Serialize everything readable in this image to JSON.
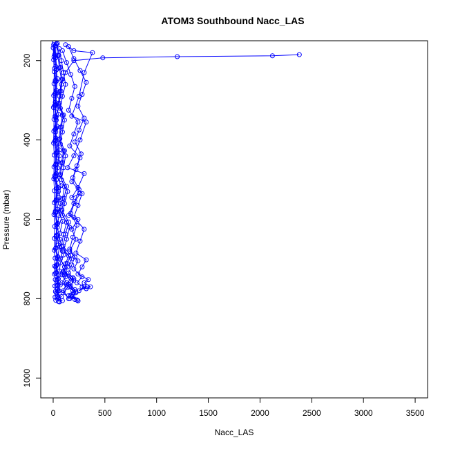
{
  "chart_data": {
    "type": "line",
    "title": "ATOM3 Southbound Nacc_LAS",
    "xlabel": "Nacc_LAS",
    "ylabel": "Pressure (mbar)",
    "xlim": [
      -120,
      3620
    ],
    "ylim": [
      1050,
      150
    ],
    "y_reversed": true,
    "x_ticks": [
      0,
      500,
      1000,
      1500,
      2000,
      2500,
      3000,
      3500
    ],
    "y_ticks": [
      200,
      400,
      600,
      800,
      1000
    ],
    "grid": false,
    "marker": "open-circle",
    "color": "#0000ff",
    "series": [
      {
        "x": [
          5,
          8,
          12,
          20,
          35,
          25,
          18,
          30,
          22,
          40,
          28,
          15,
          50,
          35,
          20,
          45,
          30,
          60,
          40,
          25,
          55,
          35,
          70,
          45,
          30,
          80,
          50,
          90
        ],
        "y": [
          160,
          190,
          220,
          250,
          280,
          310,
          340,
          370,
          400,
          430,
          460,
          490,
          520,
          550,
          580,
          610,
          640,
          670,
          700,
          720,
          740,
          755,
          765,
          775,
          785,
          795,
          800,
          805
        ]
      },
      {
        "x": [
          10,
          15,
          25,
          40,
          30,
          20,
          50,
          35,
          25,
          60,
          45,
          30,
          75,
          55,
          40,
          90,
          65,
          50,
          100,
          70,
          60,
          120,
          85,
          140,
          95,
          160
        ],
        "y": [
          155,
          185,
          215,
          245,
          275,
          305,
          335,
          365,
          395,
          425,
          455,
          485,
          515,
          545,
          575,
          605,
          635,
          665,
          690,
          710,
          730,
          745,
          760,
          772,
          785,
          800
        ]
      },
      {
        "x": [
          2380,
          2120,
          1200,
          480,
          200,
          120,
          80,
          60,
          40,
          30,
          25,
          40,
          60,
          45,
          30,
          50,
          70,
          55,
          40,
          65,
          90,
          70,
          110,
          85,
          130,
          100,
          150
        ],
        "y": [
          185,
          188,
          190,
          193,
          200,
          230,
          260,
          290,
          320,
          350,
          380,
          410,
          440,
          470,
          500,
          530,
          560,
          590,
          620,
          650,
          680,
          700,
          720,
          740,
          760,
          780,
          800
        ]
      },
      {
        "x": [
          120,
          200,
          380,
          300,
          250,
          180,
          320,
          260,
          200,
          140,
          300,
          240,
          180,
          260,
          200,
          150,
          240,
          180,
          220,
          160,
          240,
          200,
          280,
          230,
          300,
          250,
          330
        ],
        "y": [
          160,
          175,
          180,
          230,
          290,
          340,
          355,
          400,
          440,
          470,
          485,
          520,
          545,
          535,
          560,
          590,
          600,
          625,
          650,
          680,
          705,
          725,
          745,
          760,
          770,
          780,
          770
        ]
      },
      {
        "x": [
          60,
          80,
          100,
          120,
          90,
          70,
          110,
          90,
          70,
          120,
          100,
          80,
          140,
          110,
          90,
          160,
          130,
          100,
          180,
          140,
          110,
          200,
          160,
          220,
          180,
          240
        ],
        "y": [
          170,
          200,
          230,
          260,
          290,
          320,
          350,
          380,
          410,
          440,
          470,
          500,
          530,
          560,
          590,
          620,
          650,
          680,
          700,
          720,
          740,
          755,
          770,
          785,
          795,
          805
        ]
      },
      {
        "x": [
          30,
          45,
          60,
          80,
          65,
          50,
          90,
          70,
          55,
          100,
          80,
          60,
          110,
          90,
          70,
          130,
          100,
          80,
          150,
          120,
          95,
          170,
          130,
          190,
          150,
          210
        ],
        "y": [
          158,
          188,
          218,
          248,
          278,
          308,
          338,
          368,
          398,
          428,
          458,
          488,
          518,
          548,
          578,
          608,
          638,
          668,
          692,
          712,
          732,
          748,
          765,
          780,
          792,
          802
        ]
      },
      {
        "x": [
          150,
          200,
          260,
          320,
          280,
          240,
          300,
          250,
          210,
          270,
          230,
          190,
          250,
          210,
          170,
          230,
          190,
          160,
          210,
          180,
          150,
          200,
          170,
          220,
          190,
          240
        ],
        "y": [
          165,
          195,
          225,
          255,
          285,
          315,
          345,
          375,
          405,
          435,
          465,
          495,
          525,
          555,
          585,
          615,
          645,
          675,
          695,
          715,
          735,
          750,
          768,
          782,
          794,
          806
        ]
      },
      {
        "x": [
          20,
          25,
          35,
          30,
          22,
          18,
          28,
          24,
          20,
          32,
          26,
          22,
          36,
          30,
          25,
          40,
          34,
          28,
          45,
          38,
          32,
          50,
          42,
          55,
          46,
          60
        ],
        "y": [
          162,
          192,
          222,
          252,
          282,
          312,
          342,
          372,
          402,
          432,
          462,
          492,
          522,
          552,
          582,
          612,
          642,
          672,
          694,
          714,
          734,
          750,
          766,
          780,
          794,
          808
        ]
      },
      {
        "x": [
          0,
          5,
          10,
          8,
          5,
          3,
          8,
          6,
          4,
          10,
          8,
          6,
          12,
          10,
          8,
          15,
          12,
          10,
          18,
          14,
          12,
          20,
          16,
          22,
          18,
          25
        ],
        "y": [
          168,
          198,
          228,
          258,
          288,
          318,
          348,
          378,
          408,
          438,
          468,
          498,
          528,
          558,
          588,
          618,
          648,
          678,
          698,
          718,
          738,
          752,
          768,
          782,
          796,
          804
        ]
      },
      {
        "x": [
          90,
          130,
          170,
          210,
          180,
          150,
          240,
          200,
          160,
          260,
          220,
          180,
          280,
          240,
          200,
          300,
          260,
          220,
          320,
          280,
          240,
          340,
          300,
          360,
          320,
          280
        ],
        "y": [
          175,
          205,
          235,
          265,
          295,
          325,
          355,
          385,
          415,
          445,
          475,
          505,
          535,
          565,
          595,
          625,
          655,
          685,
          702,
          720,
          738,
          752,
          760,
          770,
          775,
          770
        ]
      },
      {
        "x": [
          40,
          55,
          70,
          90,
          75,
          60,
          100,
          80,
          65,
          110,
          90,
          70,
          130,
          105,
          85,
          150,
          120,
          95,
          170,
          135,
          105,
          190,
          150,
          210,
          170,
          230
        ],
        "y": [
          157,
          187,
          217,
          247,
          277,
          307,
          337,
          367,
          397,
          427,
          457,
          487,
          517,
          547,
          577,
          607,
          637,
          667,
          691,
          711,
          731,
          747,
          763,
          777,
          791,
          803
        ]
      },
      {
        "x": [
          15,
          20,
          28,
          22,
          16,
          12,
          24,
          18,
          14,
          26,
          20,
          16,
          30,
          24,
          18,
          34,
          28,
          22,
          38,
          30,
          24,
          42,
          34,
          46,
          38,
          50
        ],
        "y": [
          164,
          194,
          224,
          254,
          284,
          314,
          344,
          374,
          404,
          434,
          464,
          494,
          524,
          554,
          584,
          614,
          644,
          674,
          696,
          716,
          736,
          751,
          767,
          781,
          795,
          807
        ]
      }
    ]
  }
}
